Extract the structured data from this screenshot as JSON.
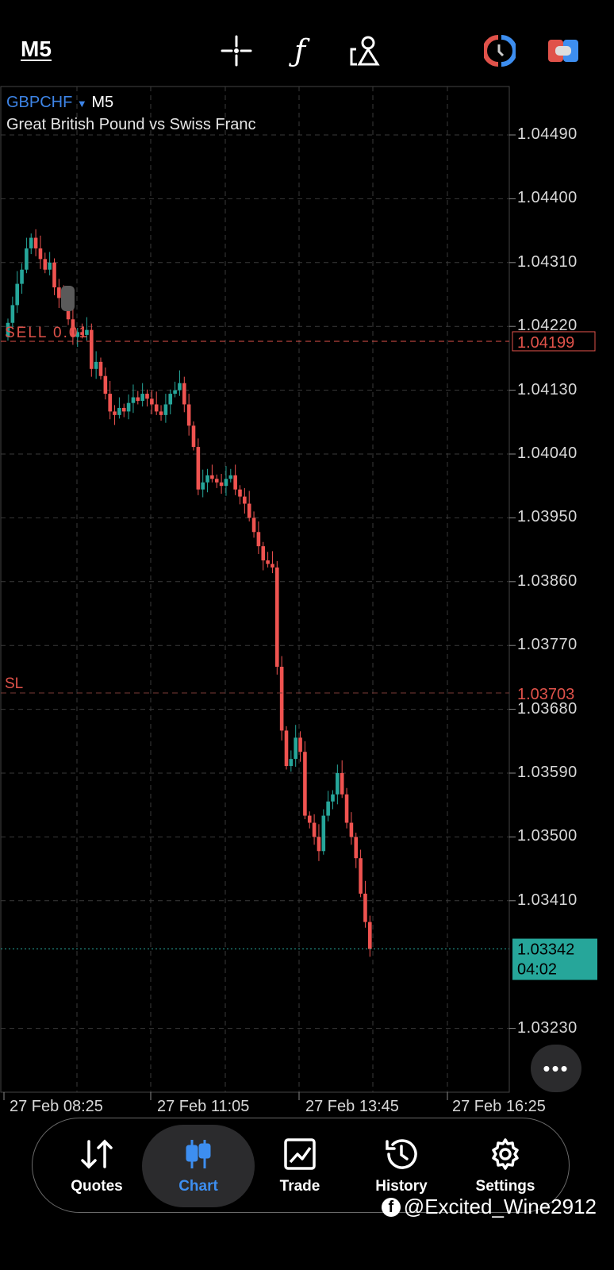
{
  "toolbar": {
    "timeframe": "M5",
    "icons": [
      "crosshair-icon",
      "indicators-f-icon",
      "objects-icon",
      "one-click-trading-icon",
      "toggle-icon"
    ]
  },
  "chart_header": {
    "symbol": "GBPCHF",
    "period": "M5",
    "description": "Great British Pound vs Swiss Franc"
  },
  "colors": {
    "bull": "#26a69a",
    "bear": "#ef5350",
    "accent": "#3d8ef0",
    "order": "#e0524a",
    "bid": "#26a69a"
  },
  "chart_data": {
    "type": "candlestick",
    "ylim": [
      1.0314,
      1.0458
    ],
    "y_ticks": [
      "1.04490",
      "1.04400",
      "1.04310",
      "1.04220",
      "1.04130",
      "1.04040",
      "1.03950",
      "1.03860",
      "1.03770",
      "1.03680",
      "1.03590",
      "1.03500",
      "1.03410",
      "1.03230"
    ],
    "x_ticks": [
      "27 Feb 08:25",
      "27 Feb 11:05",
      "27 Feb 13:45",
      "27 Feb 16:25"
    ],
    "closes": [
      1.04225,
      1.0425,
      1.0428,
      1.043,
      1.0433,
      1.04345,
      1.0433,
      1.04315,
      1.043,
      1.0431,
      1.04275,
      1.0426,
      1.0425,
      1.0423,
      1.04205,
      1.04212,
      1.04208,
      1.04215,
      1.0416,
      1.0417,
      1.0415,
      1.04125,
      1.041,
      1.04095,
      1.04105,
      1.041,
      1.04112,
      1.0412,
      1.04115,
      1.04125,
      1.04118,
      1.0411,
      1.041,
      1.04095,
      1.0411,
      1.04125,
      1.0413,
      1.0414,
      1.0411,
      1.0408,
      1.0405,
      1.0399,
      1.04,
      1.0401,
      1.04005,
      1.04,
      1.03995,
      1.04005,
      1.0401,
      1.0399,
      1.0398,
      1.0397,
      1.0395,
      1.0393,
      1.0391,
      1.0389,
      1.03885,
      1.0388,
      1.0374,
      1.0365,
      1.036,
      1.0361,
      1.0364,
      1.0362,
      1.0353,
      1.0352,
      1.035,
      1.0348,
      1.0353,
      1.0355,
      1.0356,
      1.0359,
      1.0356,
      1.0352,
      1.035,
      1.0347,
      1.0342,
      1.0338,
      1.03342
    ],
    "order_line": {
      "label": "SELL 0.01",
      "price": 1.04199,
      "price_label": "1.04199"
    },
    "sl_line": {
      "label": "SL",
      "price": 1.03703,
      "price_label": "1.03703"
    },
    "bid": {
      "price": 1.03342,
      "price_label": "1.03342",
      "countdown": "04:02"
    }
  },
  "more_label": "•••",
  "nav": [
    {
      "label": "Quotes"
    },
    {
      "label": "Chart"
    },
    {
      "label": "Trade"
    },
    {
      "label": "History"
    },
    {
      "label": "Settings"
    }
  ],
  "watermark": "@Excited_Wine2912"
}
